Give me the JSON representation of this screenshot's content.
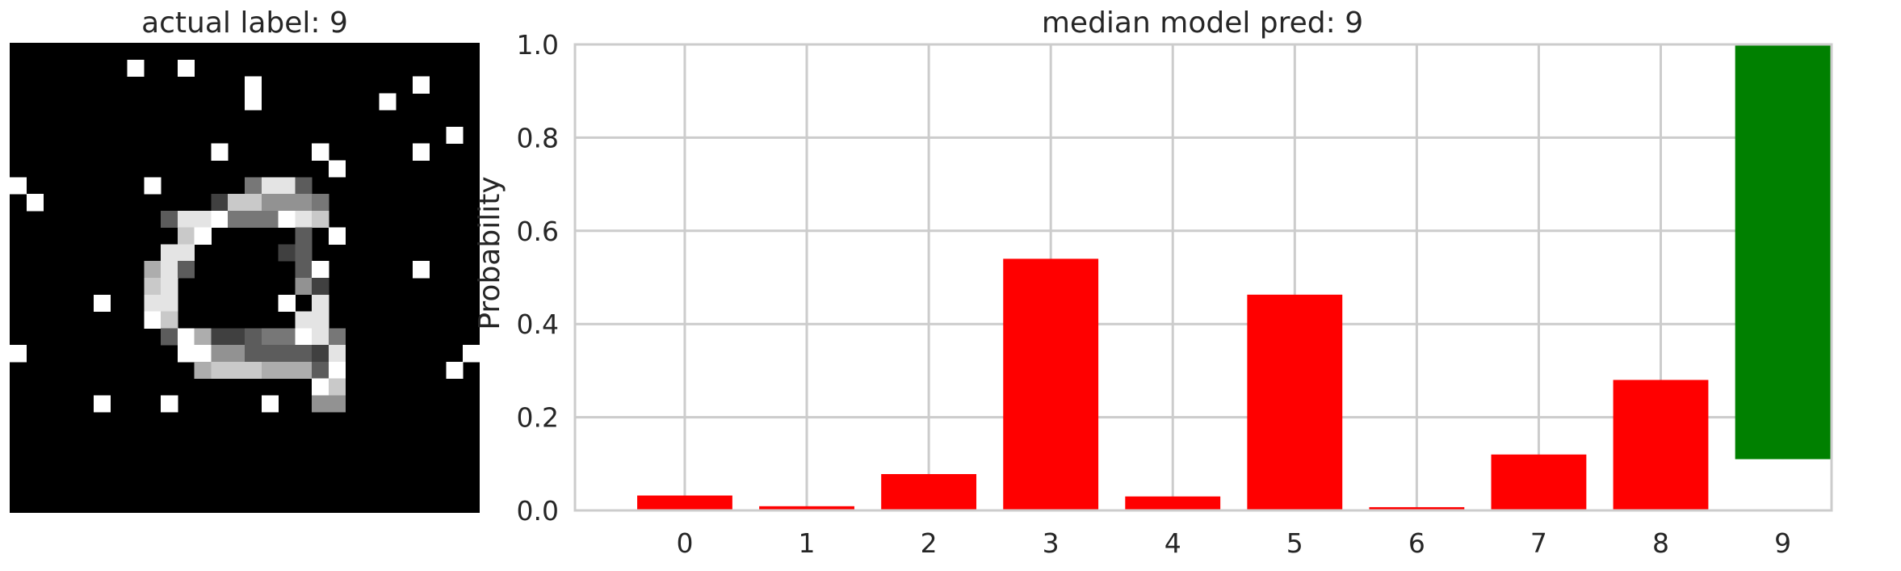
{
  "image_panel": {
    "title": "actual label: 9",
    "grid_size": 28,
    "pixels": [
      "0000000000000000000000000000",
      "0000000100100000000000000000",
      "0000000000000010000000001000",
      "0000000000000010000000100000",
      "0000000000000000000000000000",
      "0000000000000000000000000010",
      "0000000000001000001000001000",
      "0000000000000000000100000000",
      "1000000010000048830000000000",
      "0100000000002775554000000000",
      "0000000003889444987000000000",
      "0000000000790000030100000000",
      "0000000008800000230000000000",
      "0000000068300000031000001000",
      "0000000078000000052000000000",
      "0000010088000000108000000000",
      "0000000097000000088000000000",
      "0000000003962234498400000000",
      "1000000000995533332800000001",
      "0000000000067776663900000010",
      "0000000000000000009700000000",
      "0000010001000001005500000000",
      "0000000000000000000000000000",
      "0000000000000000000000000000",
      "0000000000000000000000000000",
      "0000000000000000000000000000",
      "0000000000000000000000000000",
      "0000000000000000000000000000"
    ]
  },
  "chart_data": {
    "type": "bar",
    "title": "median model pred: 9",
    "ylabel": "Probability",
    "xlabel": "",
    "ylim": [
      0,
      1
    ],
    "yticks": [
      "0.0",
      "0.2",
      "0.4",
      "0.6",
      "0.8",
      "1.0"
    ],
    "categories": [
      "0",
      "1",
      "2",
      "3",
      "4",
      "5",
      "6",
      "7",
      "8",
      "9"
    ],
    "bars": [
      {
        "label": "0",
        "bottom": 0,
        "top": 0.032,
        "color": "#ff0000"
      },
      {
        "label": "1",
        "bottom": 0,
        "top": 0.009,
        "color": "#ff0000"
      },
      {
        "label": "2",
        "bottom": 0,
        "top": 0.078,
        "color": "#ff0000"
      },
      {
        "label": "3",
        "bottom": 0,
        "top": 0.54,
        "color": "#ff0000"
      },
      {
        "label": "4",
        "bottom": 0,
        "top": 0.03,
        "color": "#ff0000"
      },
      {
        "label": "5",
        "bottom": 0,
        "top": 0.463,
        "color": "#ff0000"
      },
      {
        "label": "6",
        "bottom": 0,
        "top": 0.007,
        "color": "#ff0000"
      },
      {
        "label": "7",
        "bottom": 0,
        "top": 0.12,
        "color": "#ff0000"
      },
      {
        "label": "8",
        "bottom": 0,
        "top": 0.28,
        "color": "#ff0000"
      },
      {
        "label": "9",
        "bottom": 0.11,
        "top": 1.0,
        "color": "#008000"
      }
    ],
    "grid": true,
    "grid_color": "#cccccc"
  }
}
